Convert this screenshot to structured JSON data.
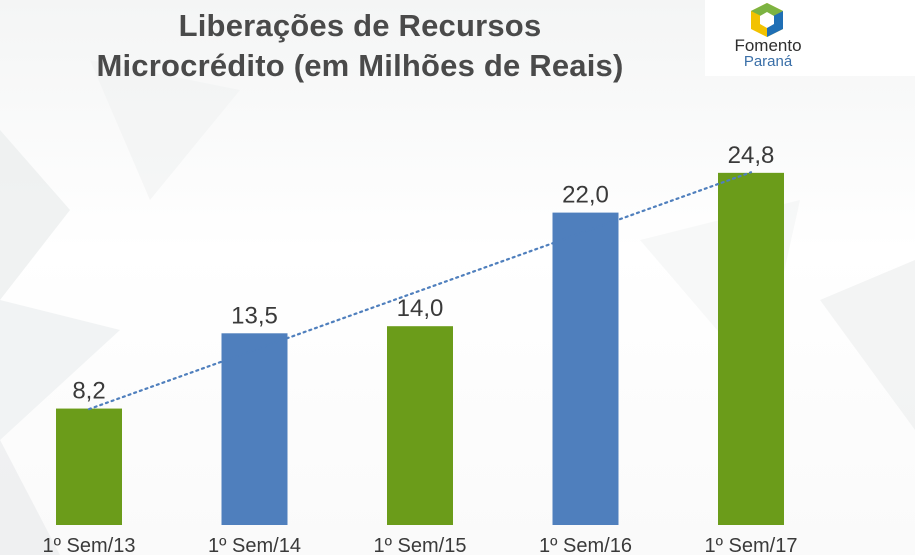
{
  "header": {
    "title_line1": "Liberações de Recursos",
    "title_line2": "Microcrédito (em Milhões de Reais)"
  },
  "logo": {
    "icon": "fomento-hexagon-logo-icon",
    "name_line1": "Fomento",
    "name_line2": "Paraná"
  },
  "chart_data": {
    "type": "bar",
    "title": "Liberações de Recursos Microcrédito (em Milhões de Reais)",
    "categories": [
      "1º Sem/13",
      "1º Sem/14",
      "1º Sem/15",
      "1º Sem/16",
      "1º Sem/17"
    ],
    "values": [
      8.2,
      13.5,
      14.0,
      22.0,
      24.8
    ],
    "value_labels": [
      "8,2",
      "13,5",
      "14,0",
      "22,0",
      "24,8"
    ],
    "bar_colors": [
      "#6b9c1a",
      "#4f7fbd",
      "#6b9c1a",
      "#4f7fbd",
      "#6b9c1a"
    ],
    "trendline": {
      "style": "dotted",
      "color": "#4f7fbd"
    },
    "ylim": [
      0,
      26
    ],
    "grid": false,
    "legend": "none",
    "xlabel": "",
    "ylabel": ""
  }
}
